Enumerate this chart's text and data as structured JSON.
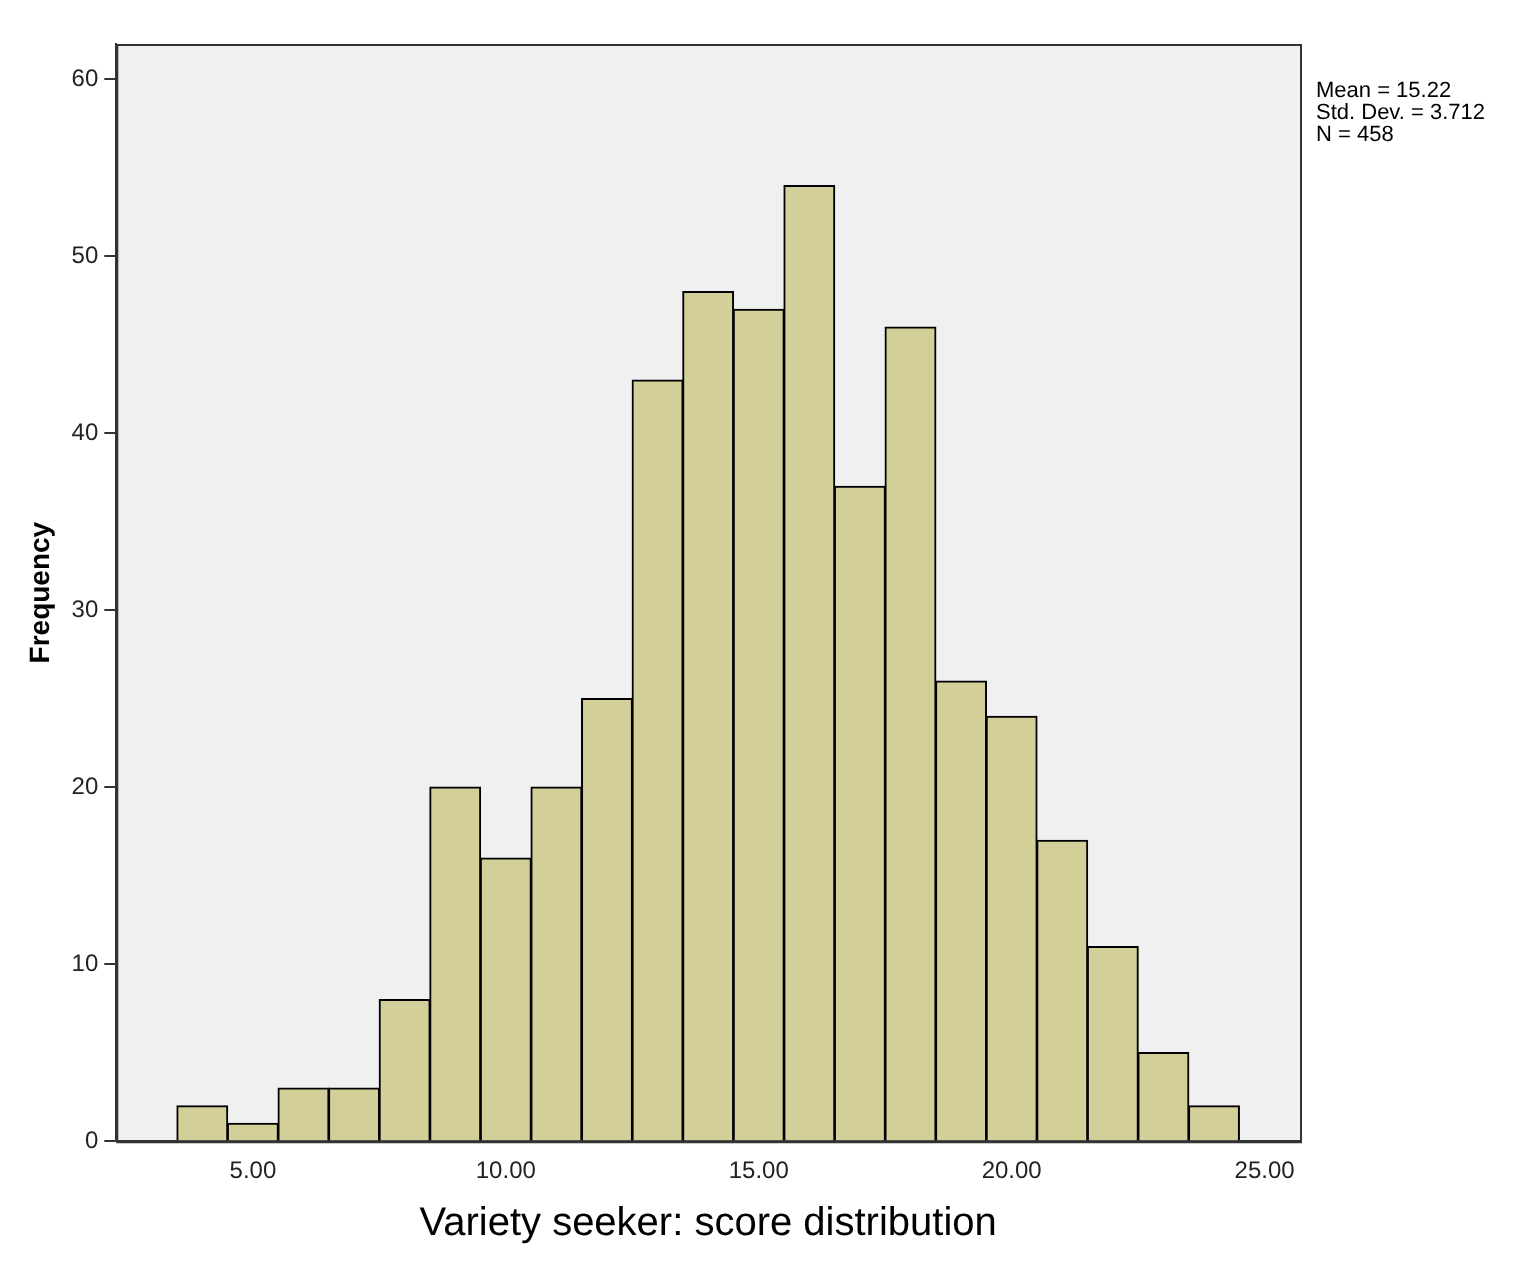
{
  "chart_data": {
    "type": "histogram",
    "xlabel": "Variety seeker: score distribution",
    "ylabel": "Frequency",
    "bins": [
      3.5,
      4.5,
      5.5,
      6.5,
      7.5,
      8.5,
      9.5,
      10.5,
      11.5,
      12.5,
      13.5,
      14.5,
      15.5,
      16.5,
      17.5,
      18.5,
      19.5,
      20.5,
      21.5,
      22.5,
      23.5,
      24.5
    ],
    "values": [
      2,
      1,
      3,
      3,
      8,
      20,
      16,
      20,
      25,
      43,
      48,
      47,
      54,
      37,
      46,
      26,
      24,
      17,
      11,
      5,
      2
    ],
    "color": "#d3cf98",
    "xlim": [
      2.3,
      25.7
    ],
    "xticks": [
      {
        "value": 5,
        "label": "5.00"
      },
      {
        "value": 10,
        "label": "10.00"
      },
      {
        "value": 15,
        "label": "15.00"
      },
      {
        "value": 20,
        "label": "20.00"
      },
      {
        "value": 25,
        "label": "25.00"
      }
    ],
    "ylim": [
      0,
      62
    ],
    "yticks": [
      0,
      10,
      20,
      30,
      40,
      50,
      60
    ],
    "grid": false,
    "legend": false,
    "annotations": [
      "Mean = 15.22",
      "Std. Dev. = 3.712",
      "N = 458"
    ]
  }
}
